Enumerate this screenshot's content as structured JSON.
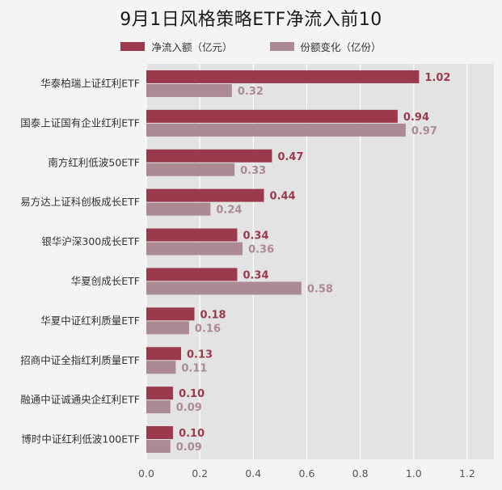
{
  "chart_data": {
    "type": "bar",
    "orientation": "horizontal",
    "title": "9月1日风格策略ETF净流入前10",
    "categories": [
      "华泰柏瑞上证红利ETF",
      "国泰上证国有企业红利ETF",
      "南方红利低波50ETF",
      "易方达上证科创板成长ETF",
      "银华沪深300成长ETF",
      "华夏创成长ETF",
      "华夏中证红利质量ETF",
      "招商中证全指红利质量ETF",
      "融通中证诚通央企红利ETF",
      "博时中证红利低波100ETF"
    ],
    "series": [
      {
        "name": "净流入额（亿元）",
        "color": "#9b3a4d",
        "values": [
          1.02,
          0.94,
          0.47,
          0.44,
          0.34,
          0.34,
          0.18,
          0.13,
          0.1,
          0.1
        ],
        "labels": [
          "1.02",
          "0.94",
          "0.47",
          "0.44",
          "0.34",
          "0.34",
          "0.18",
          "0.13",
          "0.10",
          "0.10"
        ]
      },
      {
        "name": "份额变化（亿份）",
        "color": "#ac8a93",
        "values": [
          0.32,
          0.97,
          0.33,
          0.24,
          0.36,
          0.58,
          0.16,
          0.11,
          0.09,
          0.09
        ],
        "labels": [
          "0.32",
          "0.97",
          "0.33",
          "0.24",
          "0.36",
          "0.58",
          "0.16",
          "0.11",
          "0.09",
          "0.09"
        ]
      }
    ],
    "xlim": [
      0,
      1.3
    ],
    "xticks": [
      "0.0",
      "0.2",
      "0.4",
      "0.6",
      "0.8",
      "1.0",
      "1.2"
    ],
    "xtick_values": [
      0,
      0.2,
      0.4,
      0.6,
      0.8,
      1.0,
      1.2
    ],
    "grid": true,
    "legend_position": "top-center",
    "plot_background": "#e3e3e3"
  }
}
